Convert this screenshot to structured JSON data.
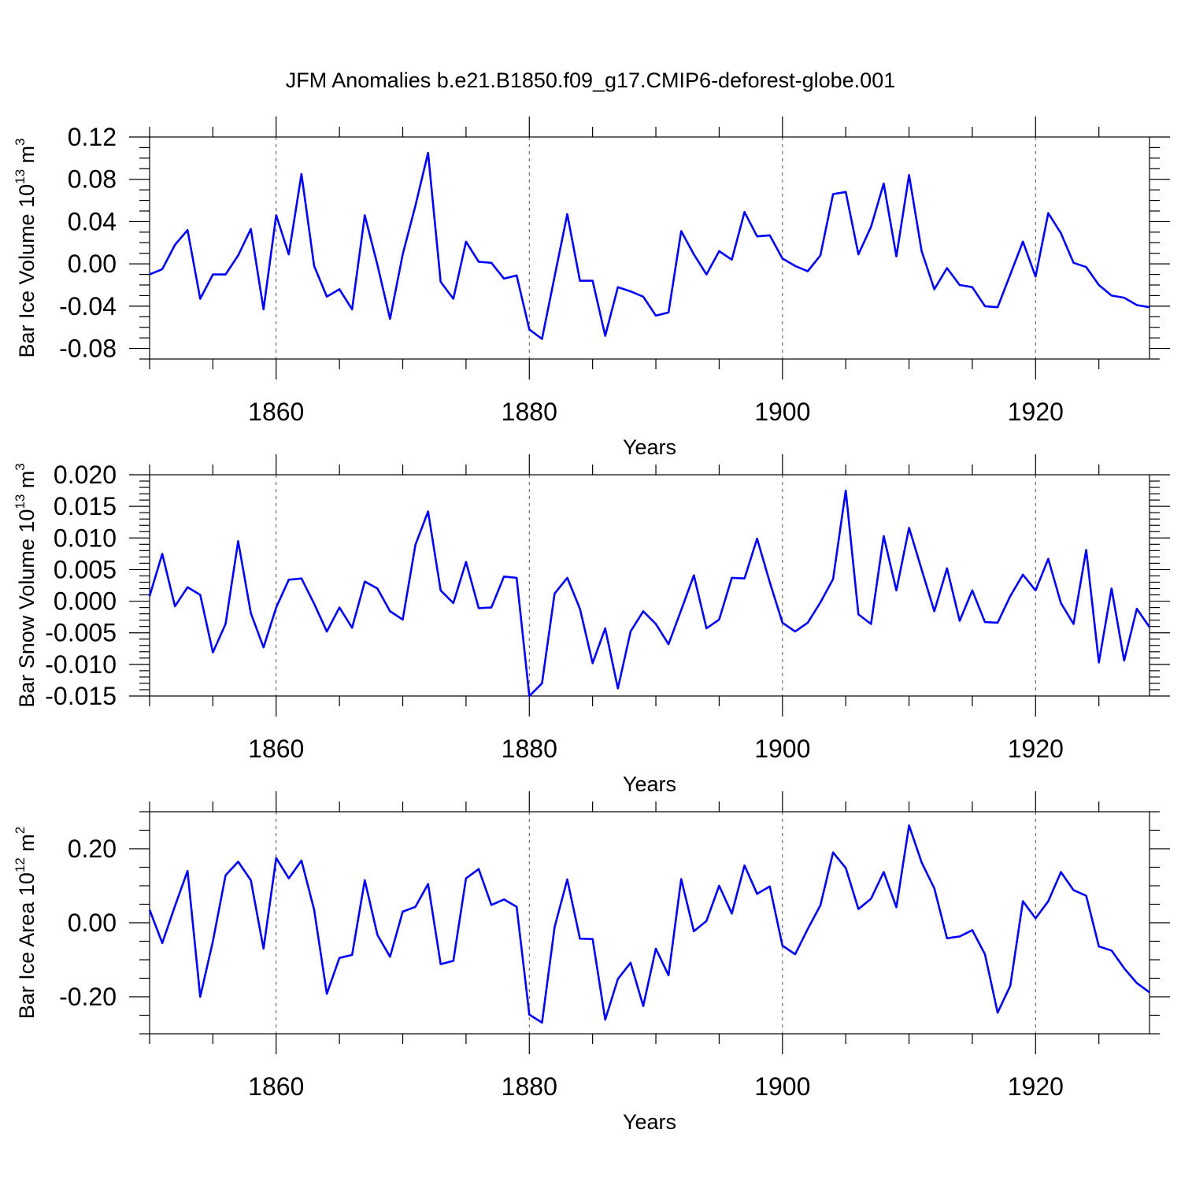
{
  "title": "JFM Anomalies b.e21.B1850.f09_g17.CMIP6-deforest-globe.001",
  "colors": {
    "series": "#0000ff",
    "axis": "#000000",
    "grid": "#555555"
  },
  "chart_data": [
    {
      "type": "line",
      "ylabel_main": "Bar Ice Volume 10",
      "ylabel_exp": "13",
      "ylabel_unit": " m",
      "ylabel_unit_exp": "3",
      "xlabel": "Years",
      "xlim": [
        1850,
        1929
      ],
      "ylim": [
        -0.09,
        0.12
      ],
      "yticks": [
        -0.08,
        -0.04,
        0.0,
        0.04,
        0.08,
        0.12
      ],
      "ytick_labels": [
        "-0.08",
        "-0.04",
        "0.00",
        "0.04",
        "0.08",
        "0.12"
      ],
      "yminor_step": 0.01,
      "xticks": [
        1860,
        1880,
        1900,
        1920
      ],
      "xtick_labels": [
        "1860",
        "1880",
        "1900",
        "1920"
      ],
      "x": [
        1850,
        1851,
        1852,
        1853,
        1854,
        1855,
        1856,
        1857,
        1858,
        1859,
        1860,
        1861,
        1862,
        1863,
        1864,
        1865,
        1866,
        1867,
        1868,
        1869,
        1870,
        1871,
        1872,
        1873,
        1874,
        1875,
        1876,
        1877,
        1878,
        1879,
        1880,
        1881,
        1882,
        1883,
        1884,
        1885,
        1886,
        1887,
        1888,
        1889,
        1890,
        1891,
        1892,
        1893,
        1894,
        1895,
        1896,
        1897,
        1898,
        1899,
        1900,
        1901,
        1902,
        1903,
        1904,
        1905,
        1906,
        1907,
        1908,
        1909,
        1910,
        1911,
        1912,
        1913,
        1914,
        1915,
        1916,
        1917,
        1918,
        1919,
        1920,
        1921,
        1922,
        1923,
        1924,
        1925,
        1926,
        1927,
        1928,
        1929
      ],
      "y": [
        -0.01,
        -0.005,
        0.018,
        0.032,
        -0.033,
        -0.01,
        -0.01,
        0.008,
        0.033,
        -0.043,
        0.046,
        0.009,
        0.085,
        -0.002,
        -0.031,
        -0.024,
        -0.043,
        0.046,
        -0.001,
        -0.052,
        0.009,
        0.055,
        0.105,
        -0.017,
        -0.033,
        0.021,
        0.002,
        0.001,
        -0.014,
        -0.011,
        -0.062,
        -0.071,
        -0.012,
        0.047,
        -0.016,
        -0.016,
        -0.068,
        -0.022,
        -0.026,
        -0.031,
        -0.049,
        -0.046,
        0.031,
        0.009,
        -0.01,
        0.012,
        0.004,
        0.049,
        0.026,
        0.027,
        0.005,
        -0.002,
        -0.007,
        0.008,
        0.066,
        0.068,
        0.009,
        0.035,
        0.076,
        0.007,
        0.084,
        0.012,
        -0.024,
        -0.004,
        -0.02,
        -0.022,
        -0.04,
        -0.041,
        -0.01,
        0.021,
        -0.012,
        0.048,
        0.029,
        0.001,
        -0.003,
        -0.02,
        -0.03,
        -0.032,
        -0.039,
        -0.041
      ]
    },
    {
      "type": "line",
      "ylabel_main": "Bar Snow Volume 10",
      "ylabel_exp": "13",
      "ylabel_unit": " m",
      "ylabel_unit_exp": "3",
      "xlabel": "Years",
      "xlim": [
        1850,
        1929
      ],
      "ylim": [
        -0.015,
        0.02
      ],
      "yticks": [
        -0.015,
        -0.01,
        -0.005,
        0.0,
        0.005,
        0.01,
        0.015,
        0.02
      ],
      "ytick_labels": [
        "-0.015",
        "-0.010",
        "-0.005",
        "0.000",
        "0.005",
        "0.010",
        "0.015",
        "0.020"
      ],
      "yminor_step": 0.001,
      "xticks": [
        1860,
        1880,
        1900,
        1920
      ],
      "xtick_labels": [
        "1860",
        "1880",
        "1900",
        "1920"
      ],
      "x": [
        1850,
        1851,
        1852,
        1853,
        1854,
        1855,
        1856,
        1857,
        1858,
        1859,
        1860,
        1861,
        1862,
        1863,
        1864,
        1865,
        1866,
        1867,
        1868,
        1869,
        1870,
        1871,
        1872,
        1873,
        1874,
        1875,
        1876,
        1877,
        1878,
        1879,
        1880,
        1881,
        1882,
        1883,
        1884,
        1885,
        1886,
        1887,
        1888,
        1889,
        1890,
        1891,
        1892,
        1893,
        1894,
        1895,
        1896,
        1897,
        1898,
        1899,
        1900,
        1901,
        1902,
        1903,
        1904,
        1905,
        1906,
        1907,
        1908,
        1909,
        1910,
        1911,
        1912,
        1913,
        1914,
        1915,
        1916,
        1917,
        1918,
        1919,
        1920,
        1921,
        1922,
        1923,
        1924,
        1925,
        1926,
        1927,
        1928,
        1929
      ],
      "y": [
        0.0008,
        0.0075,
        -0.0008,
        0.0022,
        0.001,
        -0.0081,
        -0.0036,
        0.0095,
        -0.0019,
        -0.0073,
        -0.001,
        0.0034,
        0.0036,
        -0.0004,
        -0.0048,
        -0.001,
        -0.0042,
        0.0031,
        0.002,
        -0.0016,
        -0.0029,
        0.0089,
        0.0142,
        0.0017,
        -0.0003,
        0.0062,
        -0.0011,
        -0.001,
        0.0039,
        0.0037,
        -0.015,
        -0.013,
        0.0012,
        0.0037,
        -0.0012,
        -0.0098,
        -0.0043,
        -0.0138,
        -0.0048,
        -0.0016,
        -0.0036,
        -0.0068,
        -0.0014,
        0.0041,
        -0.0043,
        -0.0029,
        0.0037,
        0.0036,
        0.0099,
        0.003,
        -0.0034,
        -0.0048,
        -0.0034,
        -0.0002,
        0.0035,
        0.0175,
        -0.0021,
        -0.0036,
        0.0103,
        0.0017,
        0.0116,
        0.005,
        -0.0016,
        0.0052,
        -0.0031,
        0.0017,
        -0.0033,
        -0.0034,
        0.0008,
        0.0042,
        0.0017,
        0.0067,
        -0.0003,
        -0.0036,
        0.0081,
        -0.0097,
        0.002,
        -0.0094,
        -0.0012,
        -0.0041
      ]
    },
    {
      "type": "line",
      "ylabel_main": "Bar Ice Area 10",
      "ylabel_exp": "12",
      "ylabel_unit": " m",
      "ylabel_unit_exp": "2",
      "xlabel": "Years",
      "xlim": [
        1850,
        1929
      ],
      "ylim": [
        -0.3,
        0.3
      ],
      "yticks": [
        -0.2,
        0.0,
        0.2
      ],
      "ytick_labels": [
        "-0.20",
        "0.00",
        "0.20"
      ],
      "yminor_step": 0.05,
      "xticks": [
        1860,
        1880,
        1900,
        1920
      ],
      "xtick_labels": [
        "1860",
        "1880",
        "1900",
        "1920"
      ],
      "x": [
        1850,
        1851,
        1852,
        1853,
        1854,
        1855,
        1856,
        1857,
        1858,
        1859,
        1860,
        1861,
        1862,
        1863,
        1864,
        1865,
        1866,
        1867,
        1868,
        1869,
        1870,
        1871,
        1872,
        1873,
        1874,
        1875,
        1876,
        1877,
        1878,
        1879,
        1880,
        1881,
        1882,
        1883,
        1884,
        1885,
        1886,
        1887,
        1888,
        1889,
        1890,
        1891,
        1892,
        1893,
        1894,
        1895,
        1896,
        1897,
        1898,
        1899,
        1900,
        1901,
        1902,
        1903,
        1904,
        1905,
        1906,
        1907,
        1908,
        1909,
        1910,
        1911,
        1912,
        1913,
        1914,
        1915,
        1916,
        1917,
        1918,
        1919,
        1920,
        1921,
        1922,
        1923,
        1924,
        1925,
        1926,
        1927,
        1928,
        1929
      ],
      "y": [
        0.035,
        -0.055,
        0.045,
        0.14,
        -0.2,
        -0.05,
        0.128,
        0.165,
        0.115,
        -0.07,
        0.175,
        0.12,
        0.168,
        0.035,
        -0.192,
        -0.095,
        -0.087,
        0.115,
        -0.033,
        -0.092,
        0.03,
        0.043,
        0.105,
        -0.112,
        -0.103,
        0.12,
        0.145,
        0.048,
        0.063,
        0.043,
        -0.248,
        -0.27,
        -0.012,
        0.117,
        -0.043,
        -0.044,
        -0.262,
        -0.152,
        -0.108,
        -0.225,
        -0.07,
        -0.142,
        0.118,
        -0.023,
        0.005,
        0.1,
        0.025,
        0.155,
        0.078,
        0.098,
        -0.062,
        -0.085,
        -0.017,
        0.047,
        0.19,
        0.148,
        0.037,
        0.065,
        0.137,
        0.042,
        0.263,
        0.163,
        0.093,
        -0.042,
        -0.037,
        -0.02,
        -0.085,
        -0.243,
        -0.17,
        0.058,
        0.012,
        0.058,
        0.137,
        0.088,
        0.073,
        -0.064,
        -0.075,
        -0.123,
        -0.163,
        -0.188
      ]
    }
  ]
}
